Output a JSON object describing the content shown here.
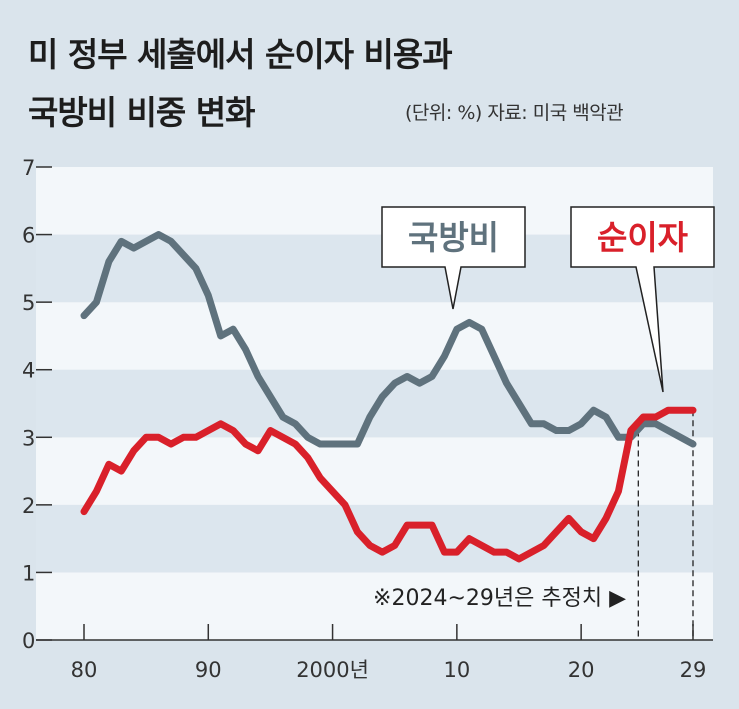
{
  "title_line1": "미 정부 세출에서 순이자 비용과",
  "title_line2": "국방비 비중 변화",
  "unit_source": "(단위: %) 자료: 미국 백악관",
  "chart_data": {
    "type": "line",
    "title": "미 정부 세출에서 순이자 비용과 국방비 비중 변화",
    "ylabel": "%",
    "ylim": [
      0,
      7
    ],
    "xlim": [
      1980,
      2029
    ],
    "y_ticks": [
      "0",
      "1",
      "2",
      "3",
      "4",
      "5",
      "6",
      "7"
    ],
    "x_ticks": [
      {
        "value": 1980,
        "label": "80"
      },
      {
        "value": 1990,
        "label": "90"
      },
      {
        "value": 2000,
        "label": "2000년"
      },
      {
        "value": 2010,
        "label": "10"
      },
      {
        "value": 2020,
        "label": "20"
      },
      {
        "value": 2029,
        "label": "29"
      }
    ],
    "x": [
      1980,
      1981,
      1982,
      1983,
      1984,
      1985,
      1986,
      1987,
      1988,
      1989,
      1990,
      1991,
      1992,
      1993,
      1994,
      1995,
      1996,
      1997,
      1998,
      1999,
      2000,
      2001,
      2002,
      2003,
      2004,
      2005,
      2006,
      2007,
      2008,
      2009,
      2010,
      2011,
      2012,
      2013,
      2014,
      2015,
      2016,
      2017,
      2018,
      2019,
      2020,
      2021,
      2022,
      2023,
      2024,
      2025,
      2026,
      2027,
      2028,
      2029
    ],
    "series": [
      {
        "name": "국방비",
        "color": "#5f727d",
        "values": [
          4.8,
          5.0,
          5.6,
          5.9,
          5.8,
          5.9,
          6.0,
          5.9,
          5.7,
          5.5,
          5.1,
          4.5,
          4.6,
          4.3,
          3.9,
          3.6,
          3.3,
          3.2,
          3.0,
          2.9,
          2.9,
          2.9,
          2.9,
          3.3,
          3.6,
          3.8,
          3.9,
          3.8,
          3.9,
          4.2,
          4.6,
          4.7,
          4.6,
          4.2,
          3.8,
          3.5,
          3.2,
          3.2,
          3.1,
          3.1,
          3.2,
          3.4,
          3.3,
          3.0,
          3.0,
          3.2,
          3.2,
          3.1,
          3.0,
          2.9
        ]
      },
      {
        "name": "순이자",
        "color": "#d9202a",
        "values": [
          1.9,
          2.2,
          2.6,
          2.5,
          2.8,
          3.0,
          3.0,
          2.9,
          3.0,
          3.0,
          3.1,
          3.2,
          3.1,
          2.9,
          2.8,
          3.1,
          3.0,
          2.9,
          2.7,
          2.4,
          2.2,
          2.0,
          1.6,
          1.4,
          1.3,
          1.4,
          1.7,
          1.7,
          1.7,
          1.3,
          1.3,
          1.5,
          1.4,
          1.3,
          1.3,
          1.2,
          1.3,
          1.4,
          1.6,
          1.8,
          1.6,
          1.5,
          1.8,
          2.2,
          3.1,
          3.3,
          3.3,
          3.4,
          3.4,
          3.4
        ]
      }
    ],
    "annotation": "※2024~29년은 추정치 ▶",
    "estimate_start": 2024.6,
    "legend": "callouts inside plot"
  }
}
